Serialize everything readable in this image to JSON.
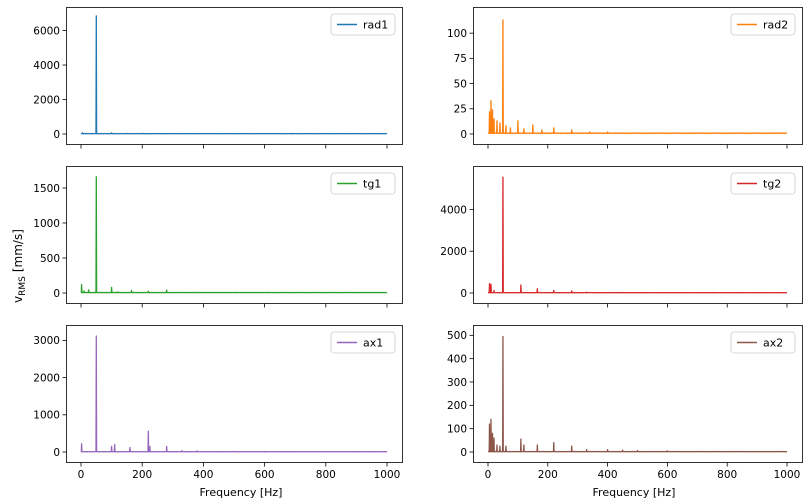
{
  "figure": {
    "ylabel": "v",
    "ylabel_sub": "RMS",
    "ylabel_unit": "[mm/s]",
    "xlabel": "Frequency [Hz]"
  },
  "chart_data": [
    {
      "type": "line",
      "name": "rad1",
      "color": "#1f77b4",
      "xlim": [
        0,
        1000
      ],
      "ylim": [
        0,
        6900
      ],
      "xticks": [
        0,
        200,
        400,
        600,
        800,
        1000
      ],
      "yticks": [
        0,
        2000,
        4000,
        6000
      ],
      "legend": "rad1",
      "legend_loc": "upper right",
      "baseline": 25,
      "peaks": [
        [
          5,
          70
        ],
        [
          50,
          6850
        ],
        [
          100,
          70
        ],
        [
          150,
          40
        ],
        [
          200,
          40
        ],
        [
          250,
          30
        ],
        [
          300,
          30
        ],
        [
          400,
          20
        ],
        [
          500,
          20
        ],
        [
          600,
          20
        ]
      ]
    },
    {
      "type": "line",
      "name": "rad2",
      "color": "#ff7f0e",
      "xlim": [
        0,
        1000
      ],
      "ylim": [
        0,
        118
      ],
      "xticks": [
        0,
        200,
        400,
        600,
        800,
        1000
      ],
      "yticks": [
        0,
        25,
        50,
        75,
        100
      ],
      "legend": "rad2",
      "legend_loc": "upper right",
      "baseline": 1,
      "peaks": [
        [
          5,
          22
        ],
        [
          10,
          33
        ],
        [
          15,
          24
        ],
        [
          20,
          15
        ],
        [
          30,
          13
        ],
        [
          40,
          11
        ],
        [
          50,
          113
        ],
        [
          60,
          8
        ],
        [
          75,
          6
        ],
        [
          100,
          13
        ],
        [
          120,
          5
        ],
        [
          150,
          9
        ],
        [
          180,
          4
        ],
        [
          220,
          6
        ],
        [
          280,
          4
        ],
        [
          340,
          2
        ],
        [
          400,
          2
        ]
      ]
    },
    {
      "type": "line",
      "name": "tg1",
      "color": "#2ca02c",
      "xlim": [
        0,
        1000
      ],
      "ylim": [
        0,
        1700
      ],
      "xticks": [
        0,
        200,
        400,
        600,
        800,
        1000
      ],
      "yticks": [
        0,
        500,
        1000,
        1500
      ],
      "legend": "tg1",
      "legend_loc": "upper right",
      "baseline": 8,
      "peaks": [
        [
          2,
          120
        ],
        [
          10,
          30
        ],
        [
          25,
          45
        ],
        [
          50,
          1660
        ],
        [
          100,
          80
        ],
        [
          120,
          15
        ],
        [
          165,
          35
        ],
        [
          220,
          25
        ],
        [
          280,
          40
        ],
        [
          380,
          10
        ],
        [
          500,
          8
        ],
        [
          610,
          10
        ]
      ]
    },
    {
      "type": "line",
      "name": "tg2",
      "color": "#d62728",
      "xlim": [
        0,
        1000
      ],
      "ylim": [
        0,
        5700
      ],
      "xticks": [
        0,
        200,
        400,
        600,
        800,
        1000
      ],
      "yticks": [
        0,
        2000,
        4000
      ],
      "legend": "tg2",
      "legend_loc": "upper right",
      "baseline": 20,
      "peaks": [
        [
          5,
          450
        ],
        [
          10,
          420
        ],
        [
          20,
          120
        ],
        [
          50,
          5550
        ],
        [
          110,
          380
        ],
        [
          165,
          200
        ],
        [
          220,
          120
        ],
        [
          280,
          100
        ],
        [
          330,
          40
        ],
        [
          450,
          30
        ]
      ]
    },
    {
      "type": "line",
      "name": "ax1",
      "color": "#9467bd",
      "xlim": [
        0,
        1000
      ],
      "ylim": [
        0,
        3200
      ],
      "xticks": [
        0,
        200,
        400,
        600,
        800,
        1000
      ],
      "yticks": [
        0,
        1000,
        2000,
        3000
      ],
      "legend": "ax1",
      "legend_loc": "upper right",
      "baseline": 10,
      "peaks": [
        [
          2,
          220
        ],
        [
          50,
          3120
        ],
        [
          100,
          150
        ],
        [
          110,
          200
        ],
        [
          160,
          120
        ],
        [
          220,
          560
        ],
        [
          225,
          150
        ],
        [
          280,
          150
        ],
        [
          330,
          40
        ],
        [
          380,
          30
        ],
        [
          500,
          20
        ],
        [
          600,
          15
        ]
      ]
    },
    {
      "type": "line",
      "name": "ax2",
      "color": "#8c564b",
      "xlim": [
        0,
        1000
      ],
      "ylim": [
        0,
        510
      ],
      "xticks": [
        0,
        200,
        400,
        600,
        800,
        1000
      ],
      "yticks": [
        0,
        100,
        200,
        300,
        400,
        500
      ],
      "legend": "ax2",
      "legend_loc": "upper right",
      "baseline": 2,
      "peaks": [
        [
          5,
          120
        ],
        [
          10,
          140
        ],
        [
          15,
          80
        ],
        [
          20,
          60
        ],
        [
          30,
          30
        ],
        [
          40,
          25
        ],
        [
          50,
          495
        ],
        [
          60,
          25
        ],
        [
          110,
          55
        ],
        [
          120,
          30
        ],
        [
          165,
          30
        ],
        [
          220,
          40
        ],
        [
          280,
          25
        ],
        [
          330,
          10
        ],
        [
          400,
          10
        ],
        [
          450,
          8
        ],
        [
          500,
          6
        ],
        [
          600,
          5
        ]
      ]
    }
  ]
}
